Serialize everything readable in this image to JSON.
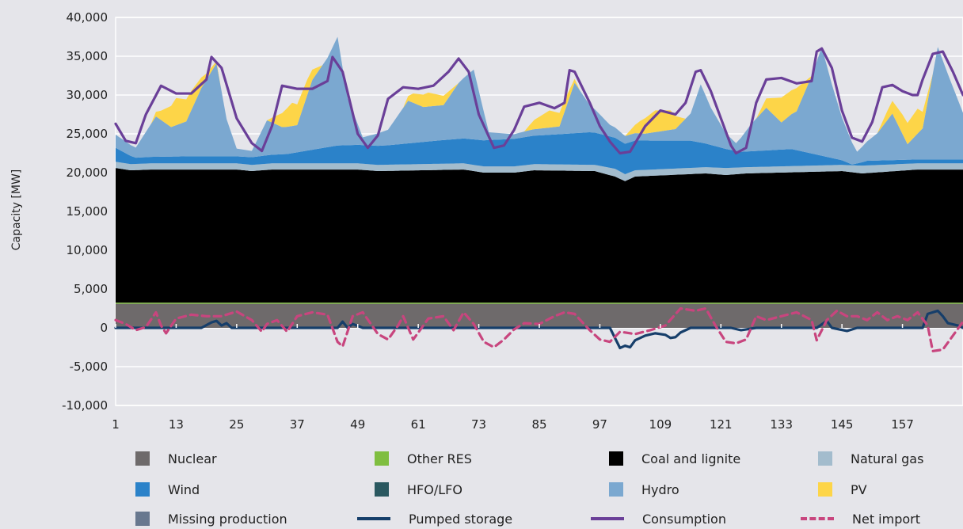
{
  "chart_data": {
    "type": "area",
    "ylabel": "Capacity [MW]",
    "xlabel": "",
    "ylim": [
      -10000,
      40000
    ],
    "xlim": [
      1,
      169
    ],
    "yticks": [
      -10000,
      -5000,
      0,
      5000,
      10000,
      15000,
      20000,
      25000,
      30000,
      35000,
      40000
    ],
    "ytick_labels": [
      "-10,000",
      "-5,000",
      "0",
      "5,000",
      "10,000",
      "15,000",
      "20,000",
      "25,000",
      "30,000",
      "35,000",
      "40,000"
    ],
    "xticks": [
      1,
      13,
      25,
      37,
      49,
      61,
      73,
      85,
      97,
      109,
      121,
      133,
      145,
      157
    ],
    "xtick_labels": [
      "1",
      "13",
      "25",
      "37",
      "49",
      "61",
      "73",
      "85",
      "97",
      "109",
      "121",
      "133",
      "145",
      "157"
    ],
    "grid": "horizontal",
    "legend_position": "bottom",
    "series": [
      {
        "name": "Nuclear",
        "kind": "area",
        "color": "#6e6a6b",
        "x": [
          1,
          169
        ],
        "values": [
          3100,
          3100
        ]
      },
      {
        "name": "Other RES",
        "kind": "area",
        "color": "#7fbe40",
        "x": [
          1,
          169
        ],
        "values": [
          150,
          150
        ]
      },
      {
        "name": "Coal and lignite",
        "kind": "area",
        "color": "#000000",
        "x": [
          1,
          4,
          8,
          25,
          28,
          32,
          49,
          53,
          70,
          74,
          80,
          84,
          96,
          100,
          102,
          104,
          118,
          122,
          126,
          145,
          149,
          160,
          169
        ],
        "values": [
          17350,
          17050,
          17150,
          17150,
          16950,
          17150,
          17150,
          16950,
          17150,
          16750,
          16750,
          17050,
          16950,
          16250,
          15650,
          16250,
          16650,
          16450,
          16650,
          16950,
          16650,
          17150,
          17150
        ]
      },
      {
        "name": "Missing production",
        "kind": "area",
        "color": "#68788f",
        "x": [
          1,
          169
        ],
        "values": [
          0,
          0
        ]
      },
      {
        "name": "Natural gas",
        "kind": "area",
        "color": "#a3bccd",
        "x": [
          1,
          4,
          8,
          25,
          28,
          32,
          49,
          53,
          70,
          74,
          80,
          84,
          96,
          100,
          104,
          118,
          122,
          126,
          145,
          149,
          160,
          169
        ],
        "values": [
          800,
          800,
          800,
          800,
          800,
          800,
          800,
          800,
          800,
          800,
          800,
          800,
          800,
          1000,
          800,
          800,
          900,
          800,
          800,
          1000,
          800,
          800
        ]
      },
      {
        "name": "Wind",
        "kind": "area",
        "color": "#2b82c9",
        "x": [
          1,
          5,
          15,
          25,
          35,
          45,
          55,
          65,
          75,
          85,
          95,
          105,
          115,
          125,
          135,
          145,
          147,
          150,
          160,
          169
        ],
        "values": [
          1800,
          800,
          900,
          900,
          1200,
          2300,
          2500,
          3000,
          3400,
          3700,
          4200,
          3800,
          3500,
          2000,
          2200,
          600,
          100,
          600,
          500,
          500
        ]
      },
      {
        "name": "Hydro",
        "kind": "area",
        "color": "#7ba8d0",
        "x": [
          1,
          5,
          9,
          12,
          15,
          18,
          21,
          23,
          25,
          28,
          31,
          34,
          37,
          40,
          43,
          45,
          47,
          50,
          55,
          59,
          62,
          66,
          69,
          72,
          75,
          80,
          83,
          86,
          89,
          92,
          95,
          99,
          102,
          106,
          109,
          112,
          115,
          117,
          119,
          122,
          124,
          127,
          130,
          133,
          136,
          139,
          141,
          143,
          145,
          148,
          152,
          155,
          158,
          161,
          164,
          166,
          169
        ],
        "values": [
          1700,
          1300,
          5200,
          3800,
          4500,
          8800,
          12000,
          4800,
          1000,
          800,
          4500,
          3500,
          3500,
          9000,
          11500,
          14000,
          6000,
          1000,
          2000,
          5500,
          4500,
          4500,
          7200,
          9000,
          1000,
          600,
          800,
          900,
          1000,
          6500,
          3500,
          1500,
          1000,
          900,
          1200,
          1500,
          3500,
          7500,
          4800,
          2000,
          1000,
          3500,
          5500,
          3500,
          5000,
          10000,
          14000,
          9500,
          5500,
          1500,
          3500,
          6000,
          2000,
          4000,
          14500,
          11000,
          6000
        ]
      },
      {
        "name": "HFO/LFO",
        "kind": "area",
        "color": "#2a5860",
        "x": [
          1,
          169
        ],
        "values": [
          0,
          0
        ]
      },
      {
        "name": "PV",
        "kind": "area",
        "color": "#fdd548",
        "x": [
          1,
          8,
          10,
          13,
          16,
          19,
          22,
          31,
          33,
          36,
          39,
          42,
          58,
          60,
          63,
          66,
          69,
          82,
          84,
          87,
          90,
          93,
          102,
          105,
          108,
          111,
          114,
          128,
          130,
          133,
          136,
          139,
          152,
          154,
          157,
          160,
          163,
          169
        ],
        "values": [
          0,
          0,
          1200,
          3500,
          2500,
          800,
          0,
          0,
          1200,
          3000,
          2000,
          0,
          0,
          1200,
          1800,
          1200,
          0,
          0,
          1200,
          2200,
          1500,
          0,
          0,
          1600,
          2800,
          2500,
          0,
          0,
          1200,
          3200,
          3000,
          0,
          0,
          1200,
          2500,
          3200,
          0,
          0
        ]
      },
      {
        "name": "Pumped storage",
        "kind": "line",
        "color": "#163e6a",
        "x": [
          1,
          18,
          20,
          21,
          22,
          23,
          24,
          26,
          28,
          45,
          46,
          47,
          48,
          50,
          99,
          100,
          101,
          102,
          103,
          104,
          106,
          108,
          110,
          111,
          112,
          113,
          115,
          123,
          125,
          128,
          140,
          142,
          143,
          146,
          148,
          161,
          162,
          164,
          165,
          166,
          168,
          169
        ],
        "values": [
          0,
          0,
          700,
          900,
          300,
          600,
          0,
          0,
          0,
          0,
          800,
          0,
          500,
          0,
          0,
          -1300,
          -2600,
          -2300,
          -2500,
          -1600,
          -1000,
          -700,
          -900,
          -1300,
          -1200,
          -600,
          0,
          0,
          -300,
          0,
          0,
          900,
          0,
          -400,
          0,
          0,
          1800,
          2200,
          1500,
          600,
          300,
          0
        ]
      },
      {
        "name": "Consumption",
        "kind": "line",
        "color": "#6a3f98",
        "x": [
          1,
          3,
          5,
          7,
          10,
          13,
          16,
          19,
          20,
          22,
          25,
          28,
          30,
          32,
          34,
          37,
          40,
          43,
          44,
          46,
          49,
          51,
          53,
          55,
          58,
          61,
          64,
          67,
          69,
          71,
          73,
          76,
          78,
          80,
          82,
          85,
          88,
          90,
          91,
          92,
          95,
          97,
          99,
          101,
          103,
          106,
          109,
          112,
          114,
          116,
          117,
          119,
          121,
          123,
          124,
          126,
          128,
          130,
          133,
          136,
          139,
          140,
          141,
          143,
          145,
          147,
          149,
          151,
          153,
          155,
          157,
          159,
          160,
          161,
          163,
          165,
          167,
          169
        ],
        "values": [
          26300,
          24100,
          23800,
          27500,
          31200,
          30200,
          30200,
          32000,
          34900,
          33500,
          27000,
          23800,
          22800,
          26000,
          31200,
          30800,
          30800,
          31800,
          34900,
          33000,
          25000,
          23200,
          24800,
          29500,
          31000,
          30800,
          31200,
          33000,
          34700,
          33000,
          27500,
          23200,
          23500,
          25500,
          28500,
          29000,
          28300,
          29000,
          33200,
          33000,
          29000,
          26000,
          24000,
          22500,
          22700,
          26000,
          28000,
          27500,
          29000,
          33000,
          33200,
          30500,
          27000,
          23500,
          22500,
          23200,
          29000,
          32000,
          32200,
          31500,
          31800,
          35600,
          36000,
          33500,
          28000,
          24500,
          24000,
          26500,
          31000,
          31300,
          30500,
          30000,
          30000,
          32000,
          35300,
          35600,
          33000,
          30000
        ]
      },
      {
        "name": "Net import",
        "kind": "line",
        "dashed": true,
        "color": "#c8457e",
        "x": [
          1,
          3,
          5,
          7,
          9,
          10,
          11,
          13,
          16,
          19,
          22,
          25,
          28,
          30,
          31,
          33,
          35,
          37,
          40,
          43,
          45,
          46,
          48,
          50,
          53,
          55,
          57,
          58,
          60,
          63,
          66,
          68,
          70,
          72,
          74,
          76,
          78,
          80,
          82,
          85,
          88,
          90,
          92,
          95,
          97,
          99,
          101,
          104,
          107,
          110,
          113,
          116,
          118,
          120,
          122,
          124,
          126,
          128,
          130,
          133,
          136,
          139,
          140,
          142,
          144,
          146,
          148,
          150,
          152,
          154,
          156,
          158,
          160,
          162,
          163,
          165,
          167,
          169
        ],
        "values": [
          1000,
          500,
          -300,
          100,
          2000,
          300,
          -700,
          1200,
          1700,
          1500,
          1500,
          2100,
          1000,
          -500,
          500,
          1000,
          -500,
          1500,
          2000,
          1700,
          -1800,
          -2400,
          1500,
          2000,
          -800,
          -1500,
          300,
          1500,
          -1500,
          1200,
          1500,
          -300,
          2000,
          500,
          -1800,
          -2500,
          -1500,
          -200,
          600,
          500,
          1500,
          2000,
          1800,
          -300,
          -1500,
          -1800,
          -500,
          -800,
          -300,
          300,
          2500,
          2200,
          2500,
          200,
          -1800,
          -2000,
          -1500,
          1500,
          1000,
          1500,
          2000,
          1000,
          -1600,
          1000,
          2200,
          1500,
          1500,
          1000,
          2000,
          1000,
          1500,
          1000,
          2000,
          300,
          -3000,
          -2800,
          -1000,
          800
        ]
      }
    ]
  },
  "legend": [
    {
      "label": "Nuclear",
      "kind": "swatch",
      "color": "#6e6a6b"
    },
    {
      "label": "Other RES",
      "kind": "swatch",
      "color": "#7fbe40"
    },
    {
      "label": "Coal and lignite",
      "kind": "swatch",
      "color": "#000000"
    },
    {
      "label": "Natural gas",
      "kind": "swatch",
      "color": "#a3bccd"
    },
    {
      "label": "Wind",
      "kind": "swatch",
      "color": "#2b82c9"
    },
    {
      "label": "HFO/LFO",
      "kind": "swatch",
      "color": "#2a5860"
    },
    {
      "label": "Hydro",
      "kind": "swatch",
      "color": "#7ba8d0"
    },
    {
      "label": "PV",
      "kind": "swatch",
      "color": "#fdd548"
    },
    {
      "label": "Missing production",
      "kind": "swatch",
      "color": "#68788f"
    },
    {
      "label": "Pumped storage",
      "kind": "line",
      "color": "#163e6a"
    },
    {
      "label": "Consumption",
      "kind": "line",
      "color": "#6a3f98"
    },
    {
      "label": "Net import",
      "kind": "dashed",
      "color": "#c8457e"
    }
  ]
}
